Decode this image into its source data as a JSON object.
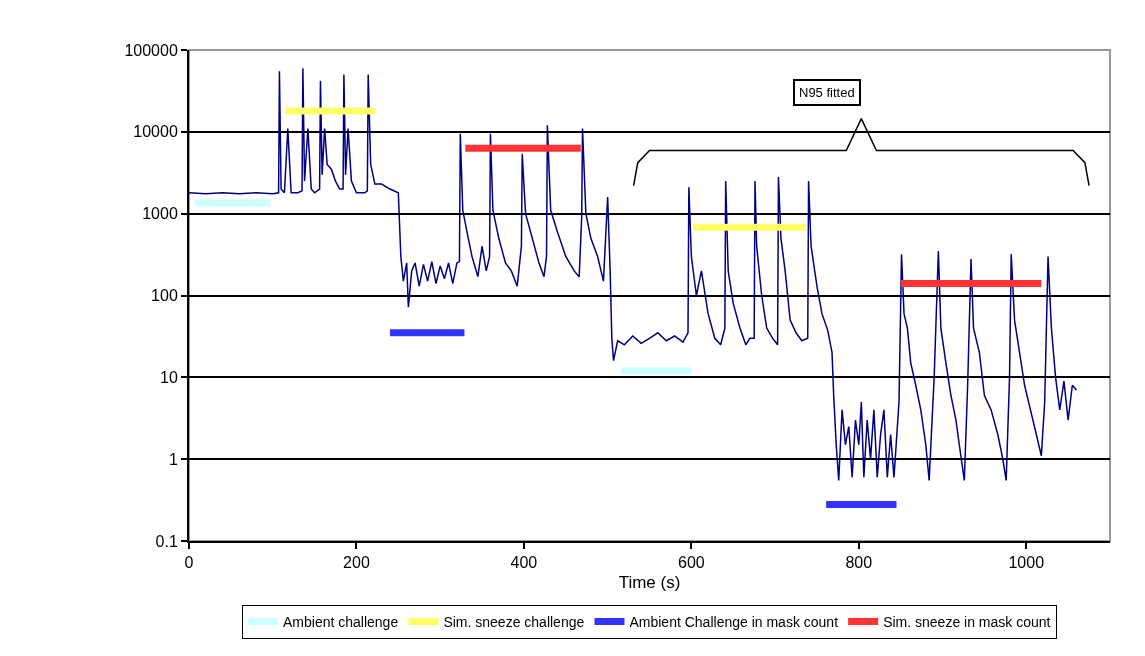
{
  "chart_data": {
    "type": "line",
    "xlabel": "Time (s)",
    "xlim": [
      0,
      1100
    ],
    "xticks": [
      0,
      200,
      400,
      600,
      800,
      1000
    ],
    "ylim": [
      0.1,
      100000
    ],
    "yticks": [
      0.1,
      1,
      10,
      100,
      1000,
      10000,
      100000
    ],
    "log": "y",
    "grid": "y",
    "legend": "bottom",
    "marker": "none",
    "line_style": "solid",
    "annotations": [
      "N95 fitted"
    ],
    "series": [
      {
        "color": "#000080",
        "x": [
          0,
          20,
          40,
          60,
          80,
          100,
          107,
          108,
          110,
          114,
          118,
          122,
          130,
          135,
          136,
          138,
          142,
          146,
          150,
          156,
          157,
          159,
          162,
          165,
          170,
          175,
          180,
          184,
          185,
          187,
          190,
          194,
          200,
          210,
          213,
          214,
          217,
          222,
          230,
          240,
          250,
          253,
          256,
          260,
          262,
          266,
          270,
          275,
          280,
          285,
          290,
          295,
          300,
          305,
          310,
          315,
          320,
          323,
          324,
          327,
          332,
          338,
          345,
          350,
          355,
          359,
          360,
          363,
          370,
          378,
          385,
          392,
          397,
          398,
          402,
          410,
          418,
          424,
          427,
          428,
          432,
          440,
          450,
          460,
          466,
          469,
          470,
          474,
          480,
          488,
          495,
          500,
          503,
          505,
          507,
          512,
          520,
          530,
          540,
          550,
          560,
          570,
          580,
          590,
          596,
          597,
          600,
          606,
          612,
          620,
          628,
          635,
          640,
          641,
          644,
          650,
          658,
          665,
          670,
          675,
          676,
          678,
          684,
          690,
          697,
          703,
          704,
          707,
          712,
          718,
          725,
          732,
          739,
          740,
          743,
          750,
          756,
          763,
          768,
          770,
          773,
          776,
          780,
          784,
          788,
          792,
          796,
          800,
          803,
          806,
          810,
          814,
          818,
          822,
          826,
          830,
          834,
          838,
          842,
          848,
          851,
          854,
          858,
          862,
          868,
          874,
          880,
          884,
          890,
          895,
          898,
          904,
          910,
          916,
          920,
          926,
          930,
          934,
          937,
          944,
          950,
          958,
          966,
          972,
          976,
          980,
          982,
          986,
          992,
          998,
          1005,
          1012,
          1018,
          1022,
          1026,
          1030,
          1035,
          1040,
          1045,
          1050,
          1055,
          1060
        ],
        "values": [
          1800,
          1750,
          1800,
          1750,
          1800,
          1750,
          1800,
          55000,
          2000,
          1800,
          11000,
          1800,
          1800,
          1900,
          60000,
          2500,
          11000,
          2000,
          1800,
          2000,
          42000,
          3000,
          11000,
          4000,
          3500,
          2500,
          2000,
          2000,
          50000,
          3000,
          11000,
          2500,
          1800,
          1800,
          1900,
          50000,
          4000,
          2300,
          2300,
          2000,
          1800,
          300,
          150,
          250,
          72,
          200,
          250,
          130,
          240,
          150,
          260,
          140,
          230,
          160,
          250,
          140,
          250,
          260,
          9500,
          1100,
          600,
          300,
          170,
          400,
          200,
          300,
          9500,
          1100,
          500,
          250,
          200,
          130,
          400,
          5400,
          1000,
          500,
          250,
          170,
          300,
          12000,
          1100,
          600,
          300,
          200,
          170,
          900,
          11000,
          1000,
          500,
          300,
          150,
          1600,
          200,
          30,
          16,
          28,
          25,
          32,
          26,
          30,
          35,
          28,
          32,
          27,
          35,
          2100,
          300,
          100,
          200,
          60,
          30,
          25,
          40,
          2500,
          200,
          80,
          40,
          25,
          30,
          30,
          2500,
          400,
          100,
          40,
          30,
          25,
          2800,
          500,
          200,
          50,
          35,
          28,
          30,
          2500,
          400,
          130,
          60,
          37,
          20,
          6,
          1.5,
          0.55,
          4,
          1.5,
          2.5,
          0.6,
          3,
          1.5,
          5,
          0.6,
          3,
          1,
          4,
          0.6,
          2,
          4,
          0.6,
          2,
          0.6,
          5,
          320,
          60,
          40,
          15,
          8,
          4,
          1.5,
          0.55,
          10,
          350,
          40,
          15,
          6,
          3,
          1.5,
          0.55,
          8,
          280,
          40,
          20,
          6,
          4,
          2,
          1,
          0.55,
          10,
          320,
          50,
          20,
          8,
          4,
          2,
          1.1,
          5,
          300,
          40,
          10,
          4,
          9,
          3,
          8,
          7
        ]
      },
      {
        "color": "#000000",
        "x": [
          531,
          536,
          550,
          785,
          803,
          821,
          1056,
          1070,
          1075
        ],
        "values": [
          2200,
          4200,
          5900,
          5900,
          14500,
          5900,
          5900,
          4200,
          2200
        ]
      },
      {
        "name": "Ambient challenge",
        "color": "#ccffff",
        "x": [
          7,
          97,
          300,
          516,
          600
        ],
        "values": [
          1350,
          1350,
          null,
          12,
          12
        ]
      },
      {
        "name": "Sim. sneeze challenge",
        "color": "#ffff66",
        "x": [
          115,
          222,
          400,
          602,
          737
        ],
        "values": [
          18000,
          18000,
          null,
          680,
          680
        ]
      },
      {
        "name": "Ambient Challenge in mask count",
        "color": "#3333ff",
        "x": [
          240,
          329,
          500,
          761,
          845
        ],
        "values": [
          35,
          35,
          null,
          0.28,
          0.28
        ]
      },
      {
        "name": "Sim. sneeze in mask count",
        "color": "#ff3333",
        "x": [
          330,
          468,
          600,
          850,
          1018
        ],
        "values": [
          6300,
          6300,
          null,
          140,
          140
        ]
      }
    ]
  }
}
